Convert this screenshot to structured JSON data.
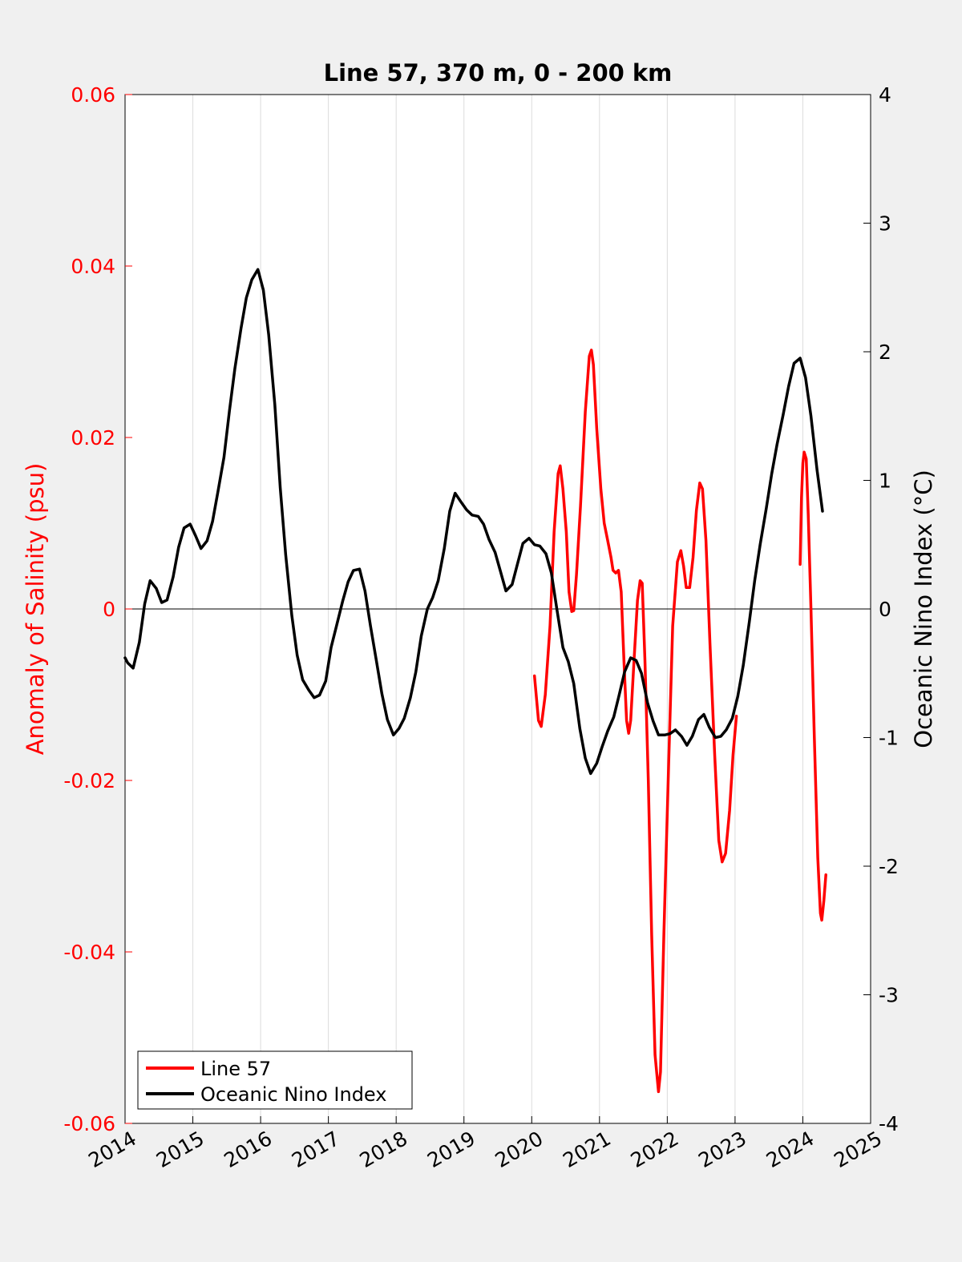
{
  "chart_data": {
    "type": "line",
    "title": "Line 57, 370 m, 0 - 200 km",
    "xlabel": "",
    "ylabel_left": "Anomaly of Salinity (psu)",
    "ylabel_right": "Oceanic Nino Index (°C)",
    "xlim": [
      2014,
      2025
    ],
    "ylim_left": [
      -0.06,
      0.06
    ],
    "ylim_right": [
      -4,
      4
    ],
    "x_ticks": [
      "2014",
      "2015",
      "2016",
      "2017",
      "2018",
      "2019",
      "2020",
      "2021",
      "2022",
      "2023",
      "2024",
      "2025"
    ],
    "y_left_ticks": [
      "-0.06",
      "-0.04",
      "-0.02",
      "0",
      "0.02",
      "0.04",
      "0.06"
    ],
    "y_right_ticks": [
      "-4",
      "-3",
      "-2",
      "-1",
      "0",
      "1",
      "2",
      "3",
      "4"
    ],
    "grid": "vertical",
    "legend_position": "bottom-left",
    "colors": {
      "line57": "#ff0000",
      "oni": "#000000",
      "left_axis": "#ff0000",
      "right_axis": "#000000"
    },
    "series": [
      {
        "name": "Line 57",
        "axis": "left",
        "segments": [
          [
            [
              2020.04,
              -0.0078
            ],
            [
              2020.1,
              -0.013
            ],
            [
              2020.14,
              -0.0137
            ],
            [
              2020.2,
              -0.01
            ],
            [
              2020.27,
              -0.002
            ],
            [
              2020.33,
              0.009
            ],
            [
              2020.39,
              0.0158
            ],
            [
              2020.42,
              0.0167
            ],
            [
              2020.46,
              0.014
            ],
            [
              2020.51,
              0.009
            ],
            [
              2020.55,
              0.002
            ],
            [
              2020.59,
              -0.0003
            ],
            [
              2020.62,
              -0.0002
            ],
            [
              2020.66,
              0.004
            ],
            [
              2020.72,
              0.012
            ],
            [
              2020.79,
              0.023
            ],
            [
              2020.85,
              0.0295
            ],
            [
              2020.88,
              0.0302
            ],
            [
              2020.91,
              0.0285
            ],
            [
              2020.96,
              0.021
            ],
            [
              2021.02,
              0.014
            ],
            [
              2021.07,
              0.01
            ],
            [
              2021.12,
              0.008
            ],
            [
              2021.17,
              0.006
            ],
            [
              2021.2,
              0.0045
            ],
            [
              2021.24,
              0.0042
            ],
            [
              2021.28,
              0.0045
            ],
            [
              2021.32,
              0.002
            ],
            [
              2021.36,
              -0.006
            ],
            [
              2021.4,
              -0.013
            ],
            [
              2021.43,
              -0.0145
            ],
            [
              2021.46,
              -0.013
            ],
            [
              2021.51,
              -0.006
            ],
            [
              2021.56,
              0.001
            ],
            [
              2021.6,
              0.0033
            ],
            [
              2021.63,
              0.003
            ],
            [
              2021.67,
              -0.006
            ],
            [
              2021.72,
              -0.02
            ],
            [
              2021.77,
              -0.038
            ],
            [
              2021.82,
              -0.052
            ],
            [
              2021.87,
              -0.0563
            ],
            [
              2021.9,
              -0.054
            ],
            [
              2021.95,
              -0.038
            ],
            [
              2022.02,
              -0.018
            ],
            [
              2022.08,
              -0.002
            ],
            [
              2022.15,
              0.0055
            ],
            [
              2022.2,
              0.0068
            ],
            [
              2022.24,
              0.005
            ],
            [
              2022.28,
              0.0025
            ],
            [
              2022.33,
              0.0025
            ],
            [
              2022.38,
              0.006
            ],
            [
              2022.43,
              0.0115
            ],
            [
              2022.48,
              0.0147
            ],
            [
              2022.52,
              0.014
            ],
            [
              2022.57,
              0.008
            ],
            [
              2022.63,
              -0.004
            ],
            [
              2022.7,
              -0.017
            ],
            [
              2022.76,
              -0.027
            ],
            [
              2022.81,
              -0.0295
            ],
            [
              2022.86,
              -0.0285
            ],
            [
              2022.92,
              -0.0235
            ],
            [
              2022.97,
              -0.017
            ],
            [
              2023.02,
              -0.0125
            ]
          ],
          [
            [
              2023.96,
              0.0052
            ],
            [
              2023.98,
              0.013
            ],
            [
              2024.0,
              0.017
            ],
            [
              2024.02,
              0.0183
            ],
            [
              2024.05,
              0.0175
            ],
            [
              2024.08,
              0.011
            ],
            [
              2024.12,
              0.0
            ],
            [
              2024.17,
              -0.015
            ],
            [
              2024.22,
              -0.029
            ],
            [
              2024.26,
              -0.0355
            ],
            [
              2024.28,
              -0.0363
            ],
            [
              2024.31,
              -0.034
            ],
            [
              2024.34,
              -0.031
            ]
          ]
        ]
      },
      {
        "name": "Oceanic Nino Index",
        "axis": "right",
        "segments": [
          [
            [
              2014.0,
              -0.38
            ],
            [
              2014.04,
              -0.42
            ],
            [
              2014.12,
              -0.46
            ],
            [
              2014.21,
              -0.26
            ],
            [
              2014.29,
              0.04
            ],
            [
              2014.37,
              0.22
            ],
            [
              2014.46,
              0.16
            ],
            [
              2014.54,
              0.05
            ],
            [
              2014.62,
              0.07
            ],
            [
              2014.71,
              0.25
            ],
            [
              2014.79,
              0.48
            ],
            [
              2014.87,
              0.63
            ],
            [
              2014.96,
              0.66
            ],
            [
              2015.04,
              0.57
            ],
            [
              2015.12,
              0.47
            ],
            [
              2015.21,
              0.53
            ],
            [
              2015.29,
              0.68
            ],
            [
              2015.37,
              0.91
            ],
            [
              2015.46,
              1.18
            ],
            [
              2015.54,
              1.54
            ],
            [
              2015.62,
              1.87
            ],
            [
              2015.71,
              2.18
            ],
            [
              2015.79,
              2.42
            ],
            [
              2015.87,
              2.56
            ],
            [
              2015.96,
              2.64
            ],
            [
              2016.04,
              2.48
            ],
            [
              2016.12,
              2.13
            ],
            [
              2016.21,
              1.59
            ],
            [
              2016.29,
              0.94
            ],
            [
              2016.37,
              0.42
            ],
            [
              2016.46,
              -0.05
            ],
            [
              2016.54,
              -0.36
            ],
            [
              2016.62,
              -0.55
            ],
            [
              2016.71,
              -0.63
            ],
            [
              2016.79,
              -0.69
            ],
            [
              2016.87,
              -0.67
            ],
            [
              2016.96,
              -0.56
            ],
            [
              2017.04,
              -0.3
            ],
            [
              2017.12,
              -0.13
            ],
            [
              2017.21,
              0.06
            ],
            [
              2017.29,
              0.21
            ],
            [
              2017.37,
              0.3
            ],
            [
              2017.46,
              0.31
            ],
            [
              2017.54,
              0.14
            ],
            [
              2017.62,
              -0.13
            ],
            [
              2017.71,
              -0.41
            ],
            [
              2017.79,
              -0.66
            ],
            [
              2017.87,
              -0.86
            ],
            [
              2017.96,
              -0.98
            ],
            [
              2018.04,
              -0.93
            ],
            [
              2018.12,
              -0.85
            ],
            [
              2018.21,
              -0.69
            ],
            [
              2018.29,
              -0.49
            ],
            [
              2018.37,
              -0.21
            ],
            [
              2018.46,
              0.0
            ],
            [
              2018.54,
              0.09
            ],
            [
              2018.62,
              0.22
            ],
            [
              2018.71,
              0.47
            ],
            [
              2018.79,
              0.76
            ],
            [
              2018.87,
              0.9
            ],
            [
              2018.96,
              0.83
            ],
            [
              2019.04,
              0.77
            ],
            [
              2019.12,
              0.73
            ],
            [
              2019.21,
              0.72
            ],
            [
              2019.29,
              0.66
            ],
            [
              2019.37,
              0.54
            ],
            [
              2019.46,
              0.44
            ],
            [
              2019.54,
              0.29
            ],
            [
              2019.62,
              0.14
            ],
            [
              2019.71,
              0.19
            ],
            [
              2019.79,
              0.35
            ],
            [
              2019.87,
              0.51
            ],
            [
              2019.96,
              0.55
            ],
            [
              2020.04,
              0.5
            ],
            [
              2020.12,
              0.49
            ],
            [
              2020.21,
              0.43
            ],
            [
              2020.29,
              0.28
            ],
            [
              2020.37,
              0.0
            ],
            [
              2020.46,
              -0.3
            ],
            [
              2020.54,
              -0.41
            ],
            [
              2020.62,
              -0.58
            ],
            [
              2020.71,
              -0.93
            ],
            [
              2020.79,
              -1.16
            ],
            [
              2020.87,
              -1.28
            ],
            [
              2020.96,
              -1.2
            ],
            [
              2021.04,
              -1.07
            ],
            [
              2021.12,
              -0.95
            ],
            [
              2021.21,
              -0.84
            ],
            [
              2021.29,
              -0.67
            ],
            [
              2021.37,
              -0.49
            ],
            [
              2021.46,
              -0.38
            ],
            [
              2021.54,
              -0.4
            ],
            [
              2021.62,
              -0.5
            ],
            [
              2021.71,
              -0.73
            ],
            [
              2021.79,
              -0.87
            ],
            [
              2021.87,
              -0.98
            ],
            [
              2021.96,
              -0.98
            ],
            [
              2022.04,
              -0.97
            ],
            [
              2022.12,
              -0.94
            ],
            [
              2022.21,
              -0.99
            ],
            [
              2022.29,
              -1.06
            ],
            [
              2022.37,
              -0.99
            ],
            [
              2022.46,
              -0.86
            ],
            [
              2022.54,
              -0.82
            ],
            [
              2022.62,
              -0.92
            ],
            [
              2022.71,
              -1.0
            ],
            [
              2022.79,
              -0.99
            ],
            [
              2022.87,
              -0.94
            ],
            [
              2022.96,
              -0.85
            ],
            [
              2023.04,
              -0.68
            ],
            [
              2023.12,
              -0.44
            ],
            [
              2023.21,
              -0.1
            ],
            [
              2023.29,
              0.22
            ],
            [
              2023.37,
              0.5
            ],
            [
              2023.46,
              0.78
            ],
            [
              2023.54,
              1.05
            ],
            [
              2023.62,
              1.28
            ],
            [
              2023.71,
              1.51
            ],
            [
              2023.79,
              1.73
            ],
            [
              2023.87,
              1.91
            ],
            [
              2023.96,
              1.95
            ],
            [
              2024.04,
              1.8
            ],
            [
              2024.12,
              1.5
            ],
            [
              2024.21,
              1.08
            ],
            [
              2024.29,
              0.76
            ]
          ]
        ]
      }
    ]
  }
}
